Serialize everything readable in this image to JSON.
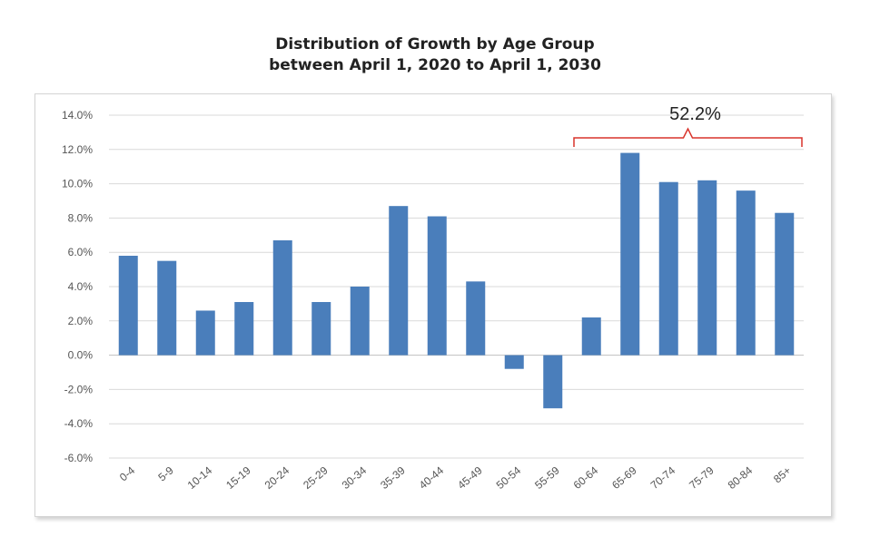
{
  "chart_data": {
    "type": "bar",
    "title_line1": "Distribution of Growth by Age Group",
    "title_line2": "between April 1, 2020 to April 1, 2030",
    "categories": [
      "0-4",
      "5-9",
      "10-14",
      "15-19",
      "20-24",
      "25-29",
      "30-34",
      "35-39",
      "40-44",
      "45-49",
      "50-54",
      "55-59",
      "60-64",
      "65-69",
      "70-74",
      "75-79",
      "80-84",
      "85+"
    ],
    "values": [
      5.8,
      5.5,
      2.6,
      3.1,
      6.7,
      3.1,
      4.0,
      8.7,
      8.1,
      4.3,
      -0.8,
      -3.1,
      2.2,
      11.8,
      10.1,
      10.2,
      9.6,
      8.3
    ],
    "ylim": [
      -6,
      14
    ],
    "yticks": [
      14,
      12,
      10,
      8,
      6,
      4,
      2,
      0,
      -2,
      -4,
      -6
    ],
    "ytick_labels": [
      "14.0%",
      "12.0%",
      "10.0%",
      "8.0%",
      "6.0%",
      "4.0%",
      "2.0%",
      "0.0%",
      "-2.0%",
      "-4.0%",
      "-6.0%"
    ],
    "xlabel": "",
    "ylabel": "",
    "grid": true,
    "bar_color": "#4a7ebb",
    "bracket_color": "#d9342b",
    "annotation": {
      "text": "52.2%",
      "from_category": "60-64",
      "to_category": "85+"
    }
  }
}
